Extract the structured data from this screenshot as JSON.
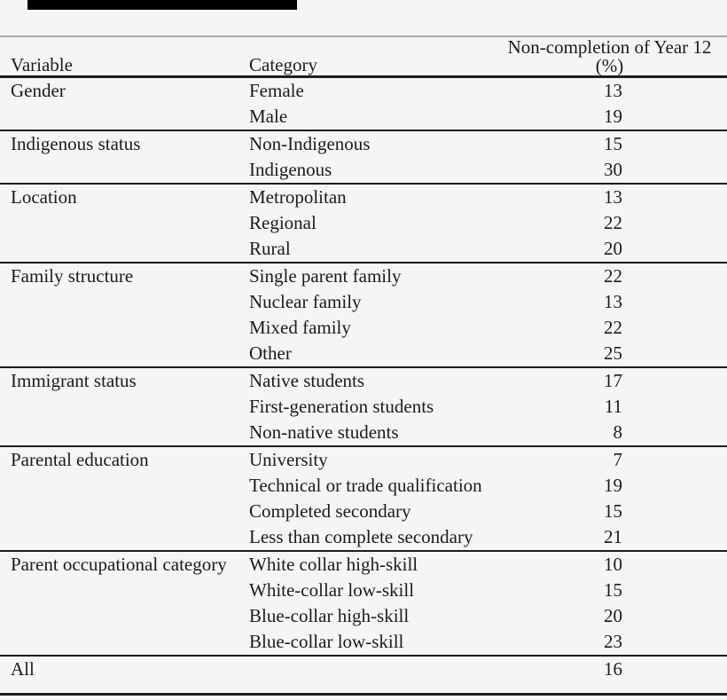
{
  "theme": {
    "background": "#f5f5f4",
    "text": "#1b1b1b",
    "rule_heavy": "#1d1d1d",
    "rule_light": "#a9a9a9",
    "artifact_bar": "#000000"
  },
  "table": {
    "header": {
      "variable": "Variable",
      "category": "Category",
      "value_line1": "Non-completion of Year 12",
      "value_line2": "(%)"
    },
    "sections": [
      {
        "variable": "Gender",
        "rows": [
          {
            "category": "Female",
            "value": "13"
          },
          {
            "category": "Male",
            "value": "19"
          }
        ]
      },
      {
        "variable": "Indigenous status",
        "rows": [
          {
            "category": "Non-Indigenous",
            "value": "15"
          },
          {
            "category": "Indigenous",
            "value": "30"
          }
        ]
      },
      {
        "variable": "Location",
        "rows": [
          {
            "category": "Metropolitan",
            "value": "13"
          },
          {
            "category": "Regional",
            "value": "22"
          },
          {
            "category": "Rural",
            "value": "20"
          }
        ]
      },
      {
        "variable": "Family structure",
        "rows": [
          {
            "category": "Single parent family",
            "value": "22"
          },
          {
            "category": "Nuclear family",
            "value": "13"
          },
          {
            "category": "Mixed family",
            "value": "22"
          },
          {
            "category": "Other",
            "value": "25"
          }
        ]
      },
      {
        "variable": "Immigrant status",
        "rows": [
          {
            "category": "Native students",
            "value": "17"
          },
          {
            "category": "First-generation students",
            "value": "11"
          },
          {
            "category": "Non-native students",
            "value": "8"
          }
        ]
      },
      {
        "variable": "Parental education",
        "rows": [
          {
            "category": "University",
            "value": "7"
          },
          {
            "category": "Technical or trade qualification",
            "value": "19"
          },
          {
            "category": "Completed secondary",
            "value": "15"
          },
          {
            "category": "Less than complete secondary",
            "value": "21"
          }
        ]
      },
      {
        "variable": "Parent occupational category",
        "rows": [
          {
            "category": "White collar high-skill",
            "value": "10"
          },
          {
            "category": "White-collar low-skill",
            "value": "15"
          },
          {
            "category": "Blue-collar high-skill",
            "value": "20"
          },
          {
            "category": "Blue-collar low-skill",
            "value": "23"
          }
        ]
      },
      {
        "variable": "All",
        "rows": [
          {
            "category": "",
            "value": "16"
          }
        ]
      }
    ]
  }
}
